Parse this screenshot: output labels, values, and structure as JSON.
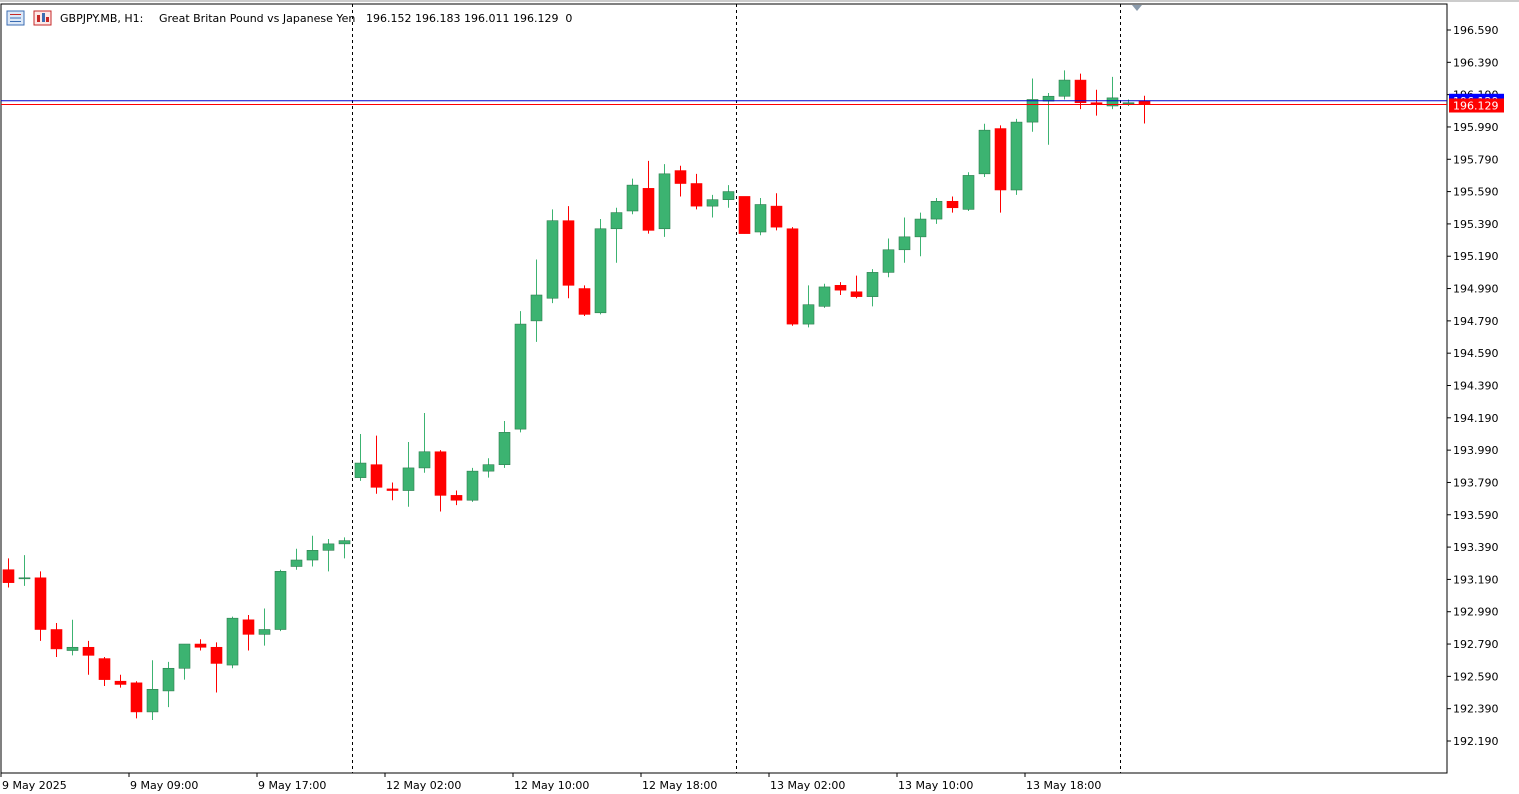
{
  "header": {
    "symbol": "GBPJPY.MB, H1:",
    "description": "Great Britan Pound vs Japanese Yen",
    "ohlc": "196.152 196.183 196.011 196.129  0",
    "menu_icon": "list-icon",
    "chart_type_icon": "chart-type-icon"
  },
  "price_tags": {
    "ask_label": "196.129",
    "bid_label": "196.129"
  },
  "colors": {
    "bull": "#3cb371",
    "bear": "#ff0000",
    "ask_line": "#0000cd",
    "bid_line": "#ff0000",
    "grid": "#000000",
    "background": "#ffffff",
    "tag_ask": "#0000ff",
    "tag_bid": "#ff0000"
  },
  "chart_data": {
    "type": "candlestick",
    "title": "GBPJPY.MB, H1:  Great Britan Pound vs Japanese Yen",
    "ylim": [
      192.05,
      196.72
    ],
    "y_ticks": [
      "196.590",
      "196.390",
      "196.190",
      "195.990",
      "195.790",
      "195.590",
      "195.390",
      "195.190",
      "194.990",
      "194.790",
      "194.590",
      "194.390",
      "194.190",
      "193.990",
      "193.790",
      "193.590",
      "193.390",
      "193.190",
      "192.990",
      "192.790",
      "192.590",
      "192.390",
      "192.190"
    ],
    "x_ticks": [
      "9 May 2025",
      "9 May 09:00",
      "9 May 17:00",
      "12 May 02:00",
      "12 May 10:00",
      "12 May 18:00",
      "13 May 02:00",
      "13 May 10:00",
      "13 May 18:00"
    ],
    "day_separators": [
      "12 May",
      "13 May",
      "14 May"
    ],
    "ask": 196.152,
    "bid": 196.129,
    "candles": [
      {
        "o": 193.25,
        "h": 193.32,
        "l": 193.14,
        "c": 193.17
      },
      {
        "o": 193.2,
        "h": 193.34,
        "l": 193.15,
        "c": 193.2
      },
      {
        "o": 193.2,
        "h": 193.24,
        "l": 192.81,
        "c": 192.88
      },
      {
        "o": 192.88,
        "h": 192.92,
        "l": 192.71,
        "c": 192.76
      },
      {
        "o": 192.75,
        "h": 192.94,
        "l": 192.72,
        "c": 192.77
      },
      {
        "o": 192.77,
        "h": 192.81,
        "l": 192.6,
        "c": 192.72
      },
      {
        "o": 192.7,
        "h": 192.71,
        "l": 192.53,
        "c": 192.57
      },
      {
        "o": 192.56,
        "h": 192.6,
        "l": 192.52,
        "c": 192.54
      },
      {
        "o": 192.55,
        "h": 192.56,
        "l": 192.33,
        "c": 192.37
      },
      {
        "o": 192.37,
        "h": 192.69,
        "l": 192.32,
        "c": 192.51
      },
      {
        "o": 192.5,
        "h": 192.68,
        "l": 192.4,
        "c": 192.64
      },
      {
        "o": 192.64,
        "h": 192.79,
        "l": 192.57,
        "c": 192.79
      },
      {
        "o": 192.79,
        "h": 192.82,
        "l": 192.75,
        "c": 192.77
      },
      {
        "o": 192.77,
        "h": 192.8,
        "l": 192.49,
        "c": 192.67
      },
      {
        "o": 192.66,
        "h": 192.96,
        "l": 192.64,
        "c": 192.95
      },
      {
        "o": 192.94,
        "h": 192.97,
        "l": 192.75,
        "c": 192.85
      },
      {
        "o": 192.85,
        "h": 193.01,
        "l": 192.78,
        "c": 192.88
      },
      {
        "o": 192.88,
        "h": 193.25,
        "l": 192.87,
        "c": 193.24
      },
      {
        "o": 193.27,
        "h": 193.38,
        "l": 193.25,
        "c": 193.31
      },
      {
        "o": 193.31,
        "h": 193.46,
        "l": 193.27,
        "c": 193.37
      },
      {
        "o": 193.37,
        "h": 193.44,
        "l": 193.24,
        "c": 193.41
      },
      {
        "o": 193.41,
        "h": 193.45,
        "l": 193.32,
        "c": 193.43
      },
      {
        "o": 193.82,
        "h": 194.09,
        "l": 193.8,
        "c": 193.91
      },
      {
        "o": 193.9,
        "h": 194.08,
        "l": 193.72,
        "c": 193.76
      },
      {
        "o": 193.75,
        "h": 193.79,
        "l": 193.68,
        "c": 193.74
      },
      {
        "o": 193.74,
        "h": 194.04,
        "l": 193.64,
        "c": 193.88
      },
      {
        "o": 193.88,
        "h": 194.22,
        "l": 193.85,
        "c": 193.98
      },
      {
        "o": 193.98,
        "h": 193.99,
        "l": 193.61,
        "c": 193.71
      },
      {
        "o": 193.71,
        "h": 193.74,
        "l": 193.65,
        "c": 193.68
      },
      {
        "o": 193.68,
        "h": 193.88,
        "l": 193.67,
        "c": 193.86
      },
      {
        "o": 193.86,
        "h": 193.94,
        "l": 193.82,
        "c": 193.9
      },
      {
        "o": 193.9,
        "h": 194.17,
        "l": 193.88,
        "c": 194.1
      },
      {
        "o": 194.12,
        "h": 194.85,
        "l": 194.1,
        "c": 194.77
      },
      {
        "o": 194.79,
        "h": 195.17,
        "l": 194.66,
        "c": 194.95
      },
      {
        "o": 194.93,
        "h": 195.48,
        "l": 194.9,
        "c": 195.41
      },
      {
        "o": 195.41,
        "h": 195.5,
        "l": 194.93,
        "c": 195.01
      },
      {
        "o": 194.99,
        "h": 195.01,
        "l": 194.82,
        "c": 194.83
      },
      {
        "o": 194.84,
        "h": 195.42,
        "l": 194.83,
        "c": 195.36
      },
      {
        "o": 195.36,
        "h": 195.49,
        "l": 195.15,
        "c": 195.46
      },
      {
        "o": 195.47,
        "h": 195.67,
        "l": 195.45,
        "c": 195.63
      },
      {
        "o": 195.61,
        "h": 195.78,
        "l": 195.33,
        "c": 195.35
      },
      {
        "o": 195.36,
        "h": 195.76,
        "l": 195.31,
        "c": 195.7
      },
      {
        "o": 195.72,
        "h": 195.75,
        "l": 195.56,
        "c": 195.64
      },
      {
        "o": 195.64,
        "h": 195.7,
        "l": 195.48,
        "c": 195.5
      },
      {
        "o": 195.5,
        "h": 195.57,
        "l": 195.43,
        "c": 195.54
      },
      {
        "o": 195.54,
        "h": 195.63,
        "l": 195.49,
        "c": 195.59
      },
      {
        "o": 195.56,
        "h": 195.56,
        "l": 195.33,
        "c": 195.33
      },
      {
        "o": 195.34,
        "h": 195.55,
        "l": 195.32,
        "c": 195.51
      },
      {
        "o": 195.5,
        "h": 195.58,
        "l": 195.35,
        "c": 195.37
      },
      {
        "o": 195.36,
        "h": 195.37,
        "l": 194.76,
        "c": 194.77
      },
      {
        "o": 194.77,
        "h": 195.01,
        "l": 194.75,
        "c": 194.89
      },
      {
        "o": 194.88,
        "h": 195.02,
        "l": 194.87,
        "c": 195.0
      },
      {
        "o": 195.01,
        "h": 195.03,
        "l": 194.95,
        "c": 194.98
      },
      {
        "o": 194.97,
        "h": 195.07,
        "l": 194.93,
        "c": 194.94
      },
      {
        "o": 194.94,
        "h": 195.11,
        "l": 194.88,
        "c": 195.09
      },
      {
        "o": 195.09,
        "h": 195.3,
        "l": 195.06,
        "c": 195.23
      },
      {
        "o": 195.23,
        "h": 195.43,
        "l": 195.15,
        "c": 195.31
      },
      {
        "o": 195.31,
        "h": 195.46,
        "l": 195.19,
        "c": 195.42
      },
      {
        "o": 195.42,
        "h": 195.55,
        "l": 195.39,
        "c": 195.53
      },
      {
        "o": 195.53,
        "h": 195.56,
        "l": 195.46,
        "c": 195.49
      },
      {
        "o": 195.48,
        "h": 195.71,
        "l": 195.47,
        "c": 195.69
      },
      {
        "o": 195.7,
        "h": 196.01,
        "l": 195.68,
        "c": 195.97
      },
      {
        "o": 195.98,
        "h": 196.0,
        "l": 195.46,
        "c": 195.6
      },
      {
        "o": 195.6,
        "h": 196.04,
        "l": 195.57,
        "c": 196.02
      },
      {
        "o": 196.02,
        "h": 196.29,
        "l": 195.96,
        "c": 196.16
      },
      {
        "o": 196.15,
        "h": 196.2,
        "l": 195.88,
        "c": 196.18
      },
      {
        "o": 196.18,
        "h": 196.34,
        "l": 196.16,
        "c": 196.28
      },
      {
        "o": 196.28,
        "h": 196.32,
        "l": 196.1,
        "c": 196.14
      },
      {
        "o": 196.14,
        "h": 196.22,
        "l": 196.06,
        "c": 196.13
      },
      {
        "o": 196.12,
        "h": 196.3,
        "l": 196.1,
        "c": 196.17
      },
      {
        "o": 196.14,
        "h": 196.16,
        "l": 196.12,
        "c": 196.14
      },
      {
        "o": 196.152,
        "h": 196.183,
        "l": 196.011,
        "c": 196.129
      }
    ]
  }
}
